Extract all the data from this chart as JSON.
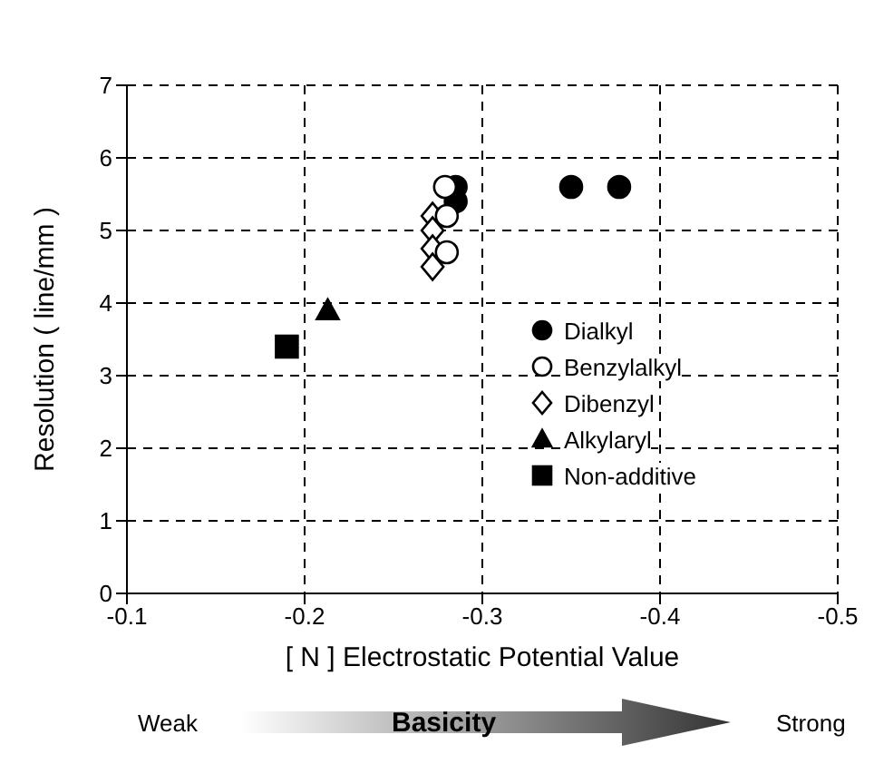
{
  "chart_data": {
    "type": "scatter",
    "xlabel": "[ N ] Electrostatic Potential Value",
    "ylabel": "Resolution ( line/mm )",
    "xlim": [
      -0.1,
      -0.5
    ],
    "xticks": [
      -0.1,
      -0.2,
      -0.3,
      -0.4,
      -0.5
    ],
    "ylim": [
      0,
      7
    ],
    "yticks": [
      0,
      1,
      2,
      3,
      4,
      5,
      6,
      7
    ],
    "grid": true,
    "legend": "right",
    "annotations": [
      "Weak",
      "Basicity",
      "Strong"
    ],
    "series": [
      {
        "name": "Dialkyl",
        "color": "#000000",
        "marker": "circle",
        "x": [
          -0.35,
          -0.377,
          -0.285,
          -0.285
        ],
        "values": [
          5.6,
          5.6,
          5.6,
          5.4
        ]
      },
      {
        "name": "Benzylalkyl",
        "color": "#ffffff",
        "marker": "circle",
        "x": [
          -0.279,
          -0.28,
          -0.28
        ],
        "values": [
          5.6,
          5.2,
          4.7
        ]
      },
      {
        "name": "Dibenzyl",
        "color": "#ffffff",
        "marker": "diamond",
        "x": [
          -0.272,
          -0.272,
          -0.272,
          -0.272
        ],
        "values": [
          5.2,
          5.0,
          4.75,
          4.5
        ]
      },
      {
        "name": "Alkylaryl",
        "color": "#000000",
        "marker": "triangle",
        "x": [
          -0.213
        ],
        "values": [
          3.9
        ]
      },
      {
        "name": "Non-additive",
        "color": "#000000",
        "marker": "square",
        "x": [
          -0.19
        ],
        "values": [
          3.4
        ]
      }
    ]
  }
}
